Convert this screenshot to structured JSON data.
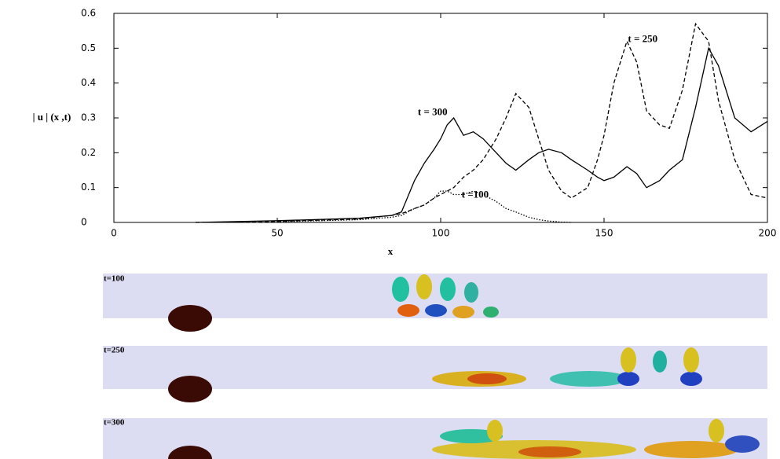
{
  "chart_data": {
    "type": "line",
    "xlabel": "x",
    "ylabel": "| u | (x ,t)",
    "x": [
      0,
      25,
      50,
      75,
      85,
      88,
      92,
      95,
      98,
      100,
      102,
      104,
      107,
      110,
      113,
      117,
      120,
      123,
      127,
      130,
      133,
      137,
      140,
      145,
      148,
      150,
      153,
      157,
      160,
      163,
      167,
      170,
      174,
      178,
      182,
      185,
      190,
      195,
      200
    ],
    "series": [
      {
        "name": "t = 300",
        "color": "#000000",
        "style": "solid",
        "values": [
          null,
          0,
          0.005,
          0.012,
          0.02,
          0.03,
          0.12,
          0.17,
          0.21,
          0.24,
          0.28,
          0.3,
          0.25,
          0.26,
          0.24,
          0.2,
          0.17,
          0.15,
          0.18,
          0.2,
          0.21,
          0.2,
          0.18,
          0.15,
          0.13,
          0.12,
          0.13,
          0.16,
          0.14,
          0.1,
          0.12,
          0.15,
          0.18,
          0.33,
          0.5,
          0.45,
          0.3,
          0.26,
          0.29
        ]
      },
      {
        "name": "t = 250",
        "color": "#000000",
        "style": "dashed",
        "values": [
          null,
          0,
          0.003,
          0.01,
          0.02,
          0.025,
          0.04,
          0.05,
          0.07,
          0.08,
          0.09,
          0.1,
          0.13,
          0.15,
          0.18,
          0.24,
          0.3,
          0.37,
          0.33,
          0.24,
          0.15,
          0.09,
          0.07,
          0.1,
          0.18,
          0.25,
          0.4,
          0.52,
          0.46,
          0.32,
          0.28,
          0.27,
          0.38,
          0.57,
          0.52,
          0.35,
          0.18,
          0.08,
          0.07
        ]
      },
      {
        "name": "t =100",
        "color": "#000000",
        "style": "dotted",
        "values": [
          null,
          null,
          0.002,
          0.008,
          0.015,
          0.02,
          0.04,
          0.05,
          0.07,
          0.09,
          0.09,
          0.08,
          0.08,
          0.09,
          0.08,
          0.06,
          0.04,
          0.03,
          0.015,
          0.008,
          0.004,
          0.001,
          0,
          null,
          null,
          null,
          null,
          null,
          null,
          null,
          null,
          null,
          null,
          null,
          null,
          null,
          null,
          null,
          null
        ]
      }
    ],
    "xlim": [
      0,
      200
    ],
    "xticks": [
      0,
      50,
      100,
      150,
      200
    ],
    "ylim": [
      0,
      0.6
    ],
    "yticks": [
      0,
      0.1,
      0.2,
      0.3,
      0.4,
      0.5,
      0.6
    ],
    "grid": false
  },
  "panels": [
    {
      "label": "t=100"
    },
    {
      "label": "t=250"
    },
    {
      "label": "t=300"
    }
  ]
}
